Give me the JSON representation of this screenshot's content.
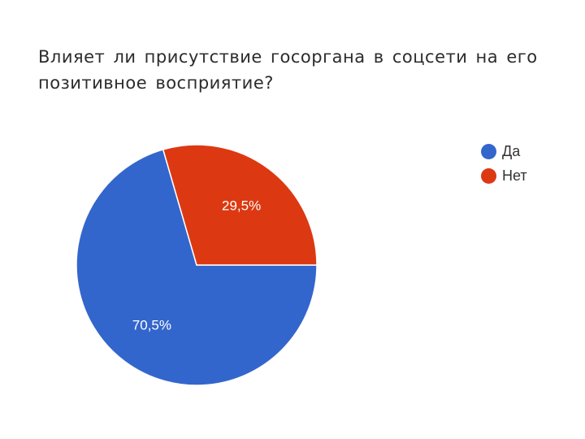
{
  "title": "Влияет ли присутствие госоргана в соцсети на его позитивное восприятие?",
  "chart_data": {
    "type": "pie",
    "title": "Влияет ли присутствие госоргана в соцсети на его позитивное восприятие?",
    "series": [
      {
        "name": "Да",
        "value": 70.5,
        "label": "70,5%",
        "color": "#3366cc"
      },
      {
        "name": "Нет",
        "value": 29.5,
        "label": "29,5%",
        "color": "#dc3912"
      }
    ],
    "legend_position": "right",
    "start_angle_deg": 0
  }
}
